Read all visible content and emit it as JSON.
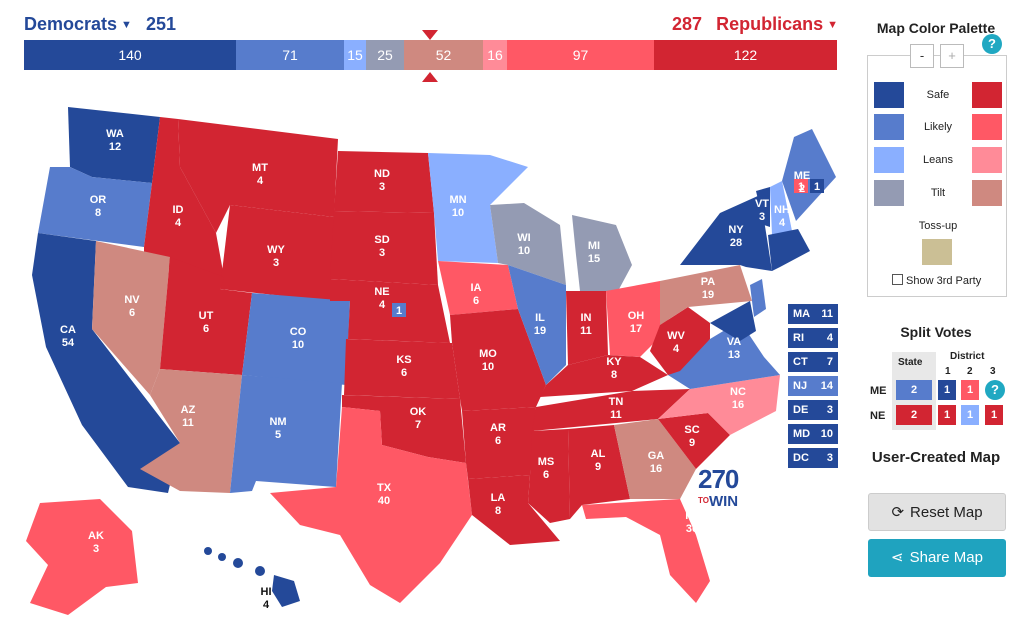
{
  "header": {
    "dem": {
      "label": "Democrats",
      "count": "251",
      "caret": "▼"
    },
    "rep": {
      "label": "Republicans",
      "count": "287",
      "caret": "▼"
    }
  },
  "bar": [
    {
      "value": "140",
      "color": "#244999",
      "w": 212
    },
    {
      "value": "71",
      "color": "#577ccc",
      "w": 108
    },
    {
      "value": "15",
      "color": "#8aafff",
      "w": 22
    },
    {
      "value": "25",
      "color": "#949bb3",
      "w": 38
    },
    {
      "value": "52",
      "color": "#cf8980",
      "w": 79
    },
    {
      "value": "16",
      "color": "#ff8b98",
      "w": 24
    },
    {
      "value": "97",
      "color": "#ff5865",
      "w": 147
    },
    {
      "value": "122",
      "color": "#d22532",
      "w": 183
    }
  ],
  "map_states": [
    {
      "abbr": "WA",
      "ev": "12"
    },
    {
      "abbr": "OR",
      "ev": "8"
    },
    {
      "abbr": "CA",
      "ev": "54"
    },
    {
      "abbr": "ID",
      "ev": "4"
    },
    {
      "abbr": "NV",
      "ev": "6"
    },
    {
      "abbr": "MT",
      "ev": "4"
    },
    {
      "abbr": "WY",
      "ev": "3"
    },
    {
      "abbr": "UT",
      "ev": "6"
    },
    {
      "abbr": "AZ",
      "ev": "11"
    },
    {
      "abbr": "CO",
      "ev": "10"
    },
    {
      "abbr": "NM",
      "ev": "5"
    },
    {
      "abbr": "ND",
      "ev": "3"
    },
    {
      "abbr": "SD",
      "ev": "3"
    },
    {
      "abbr": "NE",
      "ev": "4"
    },
    {
      "abbr": "KS",
      "ev": "6"
    },
    {
      "abbr": "OK",
      "ev": "7"
    },
    {
      "abbr": "TX",
      "ev": "40"
    },
    {
      "abbr": "MN",
      "ev": "10"
    },
    {
      "abbr": "IA",
      "ev": "6"
    },
    {
      "abbr": "MO",
      "ev": "10"
    },
    {
      "abbr": "AR",
      "ev": "6"
    },
    {
      "abbr": "LA",
      "ev": "8"
    },
    {
      "abbr": "WI",
      "ev": "10"
    },
    {
      "abbr": "IL",
      "ev": "19"
    },
    {
      "abbr": "MI",
      "ev": "15"
    },
    {
      "abbr": "IN",
      "ev": "11"
    },
    {
      "abbr": "OH",
      "ev": "17"
    },
    {
      "abbr": "KY",
      "ev": "8"
    },
    {
      "abbr": "TN",
      "ev": "11"
    },
    {
      "abbr": "MS",
      "ev": "6"
    },
    {
      "abbr": "AL",
      "ev": "9"
    },
    {
      "abbr": "GA",
      "ev": "16"
    },
    {
      "abbr": "FL",
      "ev": "30"
    },
    {
      "abbr": "SC",
      "ev": "9"
    },
    {
      "abbr": "NC",
      "ev": "16"
    },
    {
      "abbr": "VA",
      "ev": "13"
    },
    {
      "abbr": "WV",
      "ev": "4"
    },
    {
      "abbr": "PA",
      "ev": "19"
    },
    {
      "abbr": "NY",
      "ev": "28"
    },
    {
      "abbr": "VT",
      "ev": "3"
    },
    {
      "abbr": "NH",
      "ev": "4"
    },
    {
      "abbr": "ME",
      "ev": "2"
    },
    {
      "abbr": "AK",
      "ev": "3"
    },
    {
      "abbr": "HI",
      "ev": "4"
    }
  ],
  "map_extra": {
    "ne_district": "1",
    "me_d2": "1",
    "me_d1": "1"
  },
  "small_states": [
    {
      "abbr": "MA",
      "ev": "11",
      "color": "#244999"
    },
    {
      "abbr": "RI",
      "ev": "4",
      "color": "#244999"
    },
    {
      "abbr": "CT",
      "ev": "7",
      "color": "#244999"
    },
    {
      "abbr": "NJ",
      "ev": "14",
      "color": "#577ccc"
    },
    {
      "abbr": "DE",
      "ev": "3",
      "color": "#244999"
    },
    {
      "abbr": "MD",
      "ev": "10",
      "color": "#244999"
    },
    {
      "abbr": "DC",
      "ev": "3",
      "color": "#244999"
    }
  ],
  "logo": {
    "big": "270",
    "to": "TO",
    "win": "WIN"
  },
  "palette": {
    "title": "Map Color Palette",
    "minus": "-",
    "plus": "+",
    "help": "?",
    "rows": [
      {
        "label": "Safe",
        "dem": "#244999",
        "rep": "#d22532"
      },
      {
        "label": "Likely",
        "dem": "#577ccc",
        "rep": "#ff5865"
      },
      {
        "label": "Leans",
        "dem": "#8aafff",
        "rep": "#ff8b98"
      },
      {
        "label": "Tilt",
        "dem": "#949bb3",
        "rep": "#cf8980"
      }
    ],
    "tossup": "Toss-up",
    "third_party": "Show 3rd Party"
  },
  "split": {
    "title": "Split Votes",
    "state_hdr": "State",
    "district_hdr": "District",
    "d1": "1",
    "d2": "2",
    "d3": "3",
    "help": "?",
    "me": {
      "label": "ME",
      "state": "2",
      "v1": "1",
      "v2": "1"
    },
    "ne": {
      "label": "NE",
      "state": "2",
      "v1": "1",
      "v2": "1",
      "v3": "1"
    }
  },
  "user_created": {
    "title": "User-Created Map"
  },
  "buttons": {
    "reset": "Reset Map",
    "share": "Share Map",
    "reset_icon": "⟳",
    "share_icon": "⋖"
  }
}
